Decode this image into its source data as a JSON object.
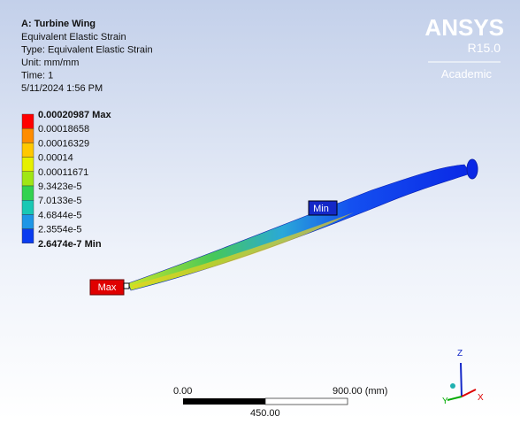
{
  "header": {
    "title": "A: Turbine Wing",
    "lines": [
      "Equivalent Elastic Strain",
      "Type: Equivalent Elastic Strain",
      "Unit: mm/mm",
      "Time: 1",
      "5/11/2024 1:56 PM"
    ]
  },
  "logo": {
    "name": "ANSYS",
    "version": "R15.0",
    "edition": "Academic"
  },
  "legend": {
    "labels": [
      "0.00020987 Max",
      "0.00018658",
      "0.00016329",
      "0.00014",
      "0.00011671",
      "9.3423e-5",
      "7.0133e-5",
      "4.6844e-5",
      "2.3554e-5",
      "2.6474e-7 Min"
    ],
    "colors": [
      "#ff0000",
      "#ff8c00",
      "#ffc800",
      "#e6f000",
      "#a0e614",
      "#32d250",
      "#19c8b4",
      "#1e96e6",
      "#0a3cf0"
    ]
  },
  "probes": {
    "max": "Max",
    "min": "Min"
  },
  "scale_bar": {
    "start": "0.00",
    "end": "900.00 (mm)",
    "middle": "450.00"
  },
  "triad": {
    "z": "Z",
    "y": "Y",
    "x": "X"
  }
}
